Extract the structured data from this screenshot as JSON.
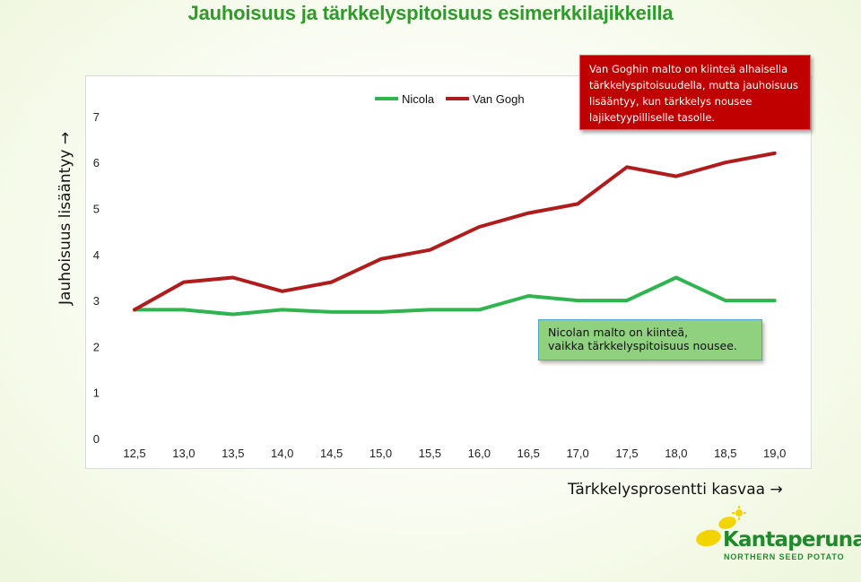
{
  "page": {
    "title": "Jauhoisuus ja tärkkelyspitoisuus esimerkkilajikkeilla"
  },
  "chart_data": {
    "type": "line",
    "title": "Jauhoisuus ja tärkkelyspitoisuus esimerkkilajikkeilla",
    "xlabel": "Tärkkelysprosentti kasvaa →",
    "ylabel": "Jauhoisuus lisääntyy →",
    "categories": [
      "12,5",
      "13,0",
      "13,5",
      "14,0",
      "14,5",
      "15,0",
      "15,5",
      "16,0",
      "16,5",
      "17,0",
      "17,5",
      "18,0",
      "18,5",
      "19,0"
    ],
    "yticks": [
      "0",
      "1",
      "2",
      "3",
      "4",
      "5",
      "6",
      "7"
    ],
    "ylim": [
      0,
      7
    ],
    "grid": false,
    "legend_position": "top-center",
    "series": [
      {
        "name": "Nicola",
        "color": "#2fb550",
        "values": [
          2.8,
          2.8,
          2.7,
          2.8,
          2.75,
          2.75,
          2.8,
          2.8,
          3.1,
          3.0,
          3.0,
          3.5,
          3.0,
          3.0
        ]
      },
      {
        "name": "Van Gogh",
        "color": "#b01c1c",
        "values": [
          2.8,
          3.4,
          3.5,
          3.2,
          3.4,
          3.9,
          4.1,
          4.6,
          4.9,
          5.1,
          5.9,
          5.7,
          6.0,
          6.2
        ]
      }
    ]
  },
  "annotations": {
    "van_gogh": {
      "lines": [
        "Van Goghin malto on kiinteä alhaisella",
        "tärkkelyspitoisuudella, mutta jauhoisuus",
        "lisääntyy, kun tärkkelys nousee",
        "lajiketyypilliselle tasolle."
      ],
      "color": "#c00000"
    },
    "nicola": {
      "lines": [
        "Nicolan malto on kiinteä,",
        "vaikka tärkkelyspitoisuus nousee."
      ],
      "color": "#8fd17f"
    }
  },
  "logo": {
    "name": "Kantaperuna",
    "subtitle": "NORTHERN SEED POTATO",
    "icon": "potato-sun-logo-icon",
    "color": "#1f8a2b",
    "accent": "#f2d400"
  }
}
